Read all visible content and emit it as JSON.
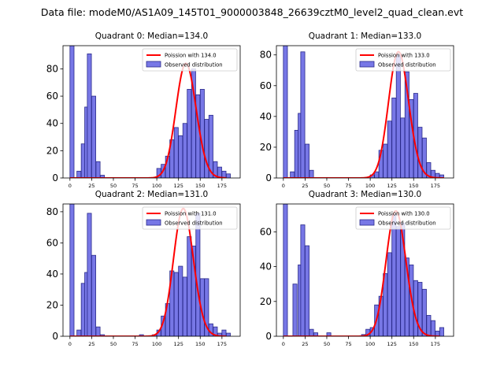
{
  "figure": {
    "suptitle": "Data file: modeM0/AS1A09_145T01_9000003848_26639cztM0_level2_quad_clean.evt"
  },
  "colors": {
    "bar_fill": "#7777e6",
    "bar_edge": "#2a2a8a",
    "poisson_line": "#ff0000",
    "axis": "#000000"
  },
  "chart_data": [
    {
      "type": "bar",
      "title": "Quadrant 0: Median=134.0",
      "xlim": [
        -8,
        196
      ],
      "ylim": [
        0,
        97
      ],
      "xticks": [
        0,
        25,
        50,
        75,
        100,
        125,
        150,
        175
      ],
      "yticks": [
        0,
        20,
        40,
        60,
        80
      ],
      "legend": [
        "Poission with 134.0",
        "Observed distribution"
      ],
      "bin_width": 4.7,
      "histogram": {
        "bin_left": [
          0,
          8,
          13,
          17,
          20,
          25,
          30,
          35,
          100,
          105,
          110,
          115,
          120,
          125,
          130,
          135,
          140,
          145,
          150,
          155,
          160,
          165,
          170,
          175,
          180
        ],
        "counts": [
          97,
          5,
          25,
          52,
          91,
          60,
          12,
          2,
          7,
          10,
          16,
          28,
          37,
          31,
          40,
          65,
          80,
          61,
          65,
          43,
          46,
          12,
          8,
          5,
          3
        ]
      },
      "poisson": {
        "mean": 134.0,
        "x_range": [
          0,
          180
        ],
        "peak": 84
      }
    },
    {
      "type": "bar",
      "title": "Quadrant 1: Median=133.0",
      "xlim": [
        -8,
        196
      ],
      "ylim": [
        0,
        86
      ],
      "xticks": [
        0,
        25,
        50,
        75,
        100,
        125,
        150,
        175
      ],
      "yticks": [
        0,
        20,
        40,
        60,
        80
      ],
      "legend": [
        "Poission with 133.0",
        "Observed distribution"
      ],
      "bin_width": 4.7,
      "histogram": {
        "bin_left": [
          0,
          8,
          13,
          17,
          20,
          25,
          30,
          35,
          100,
          105,
          110,
          115,
          120,
          125,
          130,
          135,
          140,
          145,
          150,
          155,
          160,
          165,
          170,
          175,
          180
        ],
        "counts": [
          86,
          4,
          31,
          42,
          82,
          22,
          5,
          0,
          2,
          4,
          18,
          22,
          37,
          52,
          80,
          39,
          69,
          51,
          55,
          33,
          26,
          10,
          5,
          3,
          2
        ]
      },
      "poisson": {
        "mean": 133.0,
        "x_range": [
          0,
          185
        ],
        "peak": 82
      }
    },
    {
      "type": "bar",
      "title": "Quadrant 2: Median=131.0",
      "xlim": [
        -8,
        196
      ],
      "ylim": [
        0,
        85
      ],
      "xticks": [
        0,
        25,
        50,
        75,
        100,
        125,
        150,
        175
      ],
      "yticks": [
        0,
        20,
        40,
        60,
        80
      ],
      "legend": [
        "Poission with 131.0",
        "Observed distribution"
      ],
      "bin_width": 4.7,
      "histogram": {
        "bin_left": [
          0,
          8,
          13,
          17,
          20,
          25,
          30,
          35,
          80,
          95,
          100,
          105,
          110,
          115,
          120,
          125,
          130,
          135,
          140,
          145,
          150,
          155,
          160,
          165,
          170,
          175,
          180
        ],
        "counts": [
          85,
          4,
          34,
          41,
          79,
          52,
          6,
          1,
          1,
          1,
          4,
          13,
          21,
          42,
          41,
          45,
          38,
          64,
          58,
          79,
          37,
          37,
          8,
          6,
          2,
          4,
          2
        ]
      },
      "poisson": {
        "mean": 131.0,
        "x_range": [
          0,
          180
        ],
        "peak": 82
      }
    },
    {
      "type": "bar",
      "title": "Quadrant 3: Median=130.0",
      "xlim": [
        -8,
        196
      ],
      "ylim": [
        0,
        76
      ],
      "xticks": [
        0,
        25,
        50,
        75,
        100,
        125,
        150,
        175
      ],
      "yticks": [
        0,
        20,
        40,
        60
      ],
      "legend": [
        "Poission with 130.0",
        "Observed distribution"
      ],
      "bin_width": 4.7,
      "histogram": {
        "bin_left": [
          0,
          11,
          17,
          20,
          25,
          30,
          35,
          50,
          90,
          95,
          100,
          105,
          110,
          115,
          120,
          125,
          130,
          135,
          140,
          145,
          150,
          155,
          160,
          165,
          170,
          175,
          180
        ],
        "counts": [
          76,
          30,
          41,
          64,
          52,
          4,
          2,
          2,
          1,
          4,
          5,
          18,
          23,
          36,
          48,
          70,
          63,
          65,
          45,
          41,
          32,
          31,
          27,
          12,
          9,
          3,
          5
        ]
      },
      "poisson": {
        "mean": 130.0,
        "x_range": [
          0,
          180
        ],
        "peak": 72
      }
    }
  ]
}
